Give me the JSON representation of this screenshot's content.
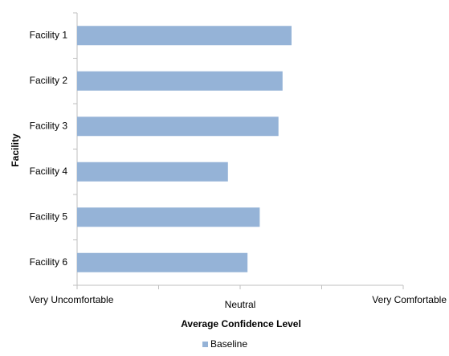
{
  "chart_data": {
    "type": "hbar",
    "categories": [
      "Facility 1",
      "Facility 2",
      "Facility 3",
      "Facility 4",
      "Facility 5",
      "Facility 6"
    ],
    "series": [
      {
        "name": "Baseline",
        "color": "#95b3d7",
        "values": [
          3.63,
          3.52,
          3.47,
          2.85,
          3.24,
          3.09
        ]
      }
    ],
    "xlim": [
      1,
      5
    ],
    "xticks": [
      {
        "value": 1,
        "label": "Very Uncomfortable"
      },
      {
        "value": 3,
        "label": "Neutral"
      },
      {
        "value": 5,
        "label": "Very Comfortable"
      }
    ],
    "minor_xticks": [
      2,
      4
    ],
    "xlabel": "Average Confidence Level",
    "ylabel": "Facility",
    "legend": "bottom"
  }
}
